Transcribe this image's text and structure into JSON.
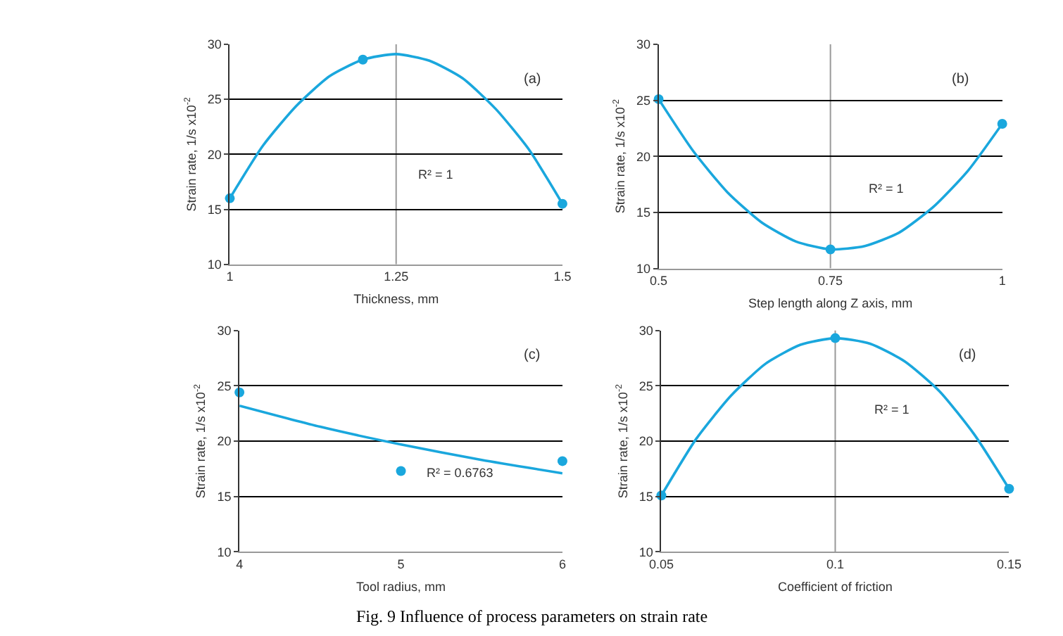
{
  "chart_data": [
    {
      "type": "scatter",
      "xlabel": "Thickness, mm",
      "ylabel": "Strain rate, 1/s x10$^{-2}$",
      "annotations": [
        "(a)",
        "R² = 1"
      ],
      "xlim": [
        1,
        1.5
      ],
      "xticks": [
        1,
        1.25,
        1.5
      ],
      "ylim": [
        10,
        30
      ],
      "yticks": [
        10,
        15,
        20,
        25,
        30
      ],
      "grid": "y",
      "ref_lines": [
        {
          "axis": "x",
          "value": 1.25,
          "color": "#999999"
        }
      ],
      "series": [
        {
          "marker": "circle",
          "color": "#1aa7dd",
          "x": [
            1,
            1.2,
            1.5
          ],
          "values": [
            16,
            28.6,
            15.5
          ]
        },
        {
          "type": "line",
          "marker": "none",
          "color": "#1aa7dd",
          "x": [
            1,
            1.05,
            1.1,
            1.15,
            1.2,
            1.25,
            1.3,
            1.35,
            1.4,
            1.45,
            1.5
          ],
          "values": [
            16,
            20.8,
            24.4,
            27.1,
            28.6,
            29.1,
            28.5,
            26.9,
            24.1,
            20.4,
            15.5
          ]
        }
      ]
    },
    {
      "type": "scatter",
      "xlabel": "Step length along Z axis, mm",
      "ylabel": "Strain rate, 1/s x10$^{-2}$",
      "annotations": [
        "(b)",
        "R² = 1"
      ],
      "xlim": [
        0.5,
        1
      ],
      "xticks": [
        0.5,
        0.75,
        1
      ],
      "ylim": [
        10,
        30
      ],
      "yticks": [
        10,
        15,
        20,
        25,
        30
      ],
      "grid": "y",
      "ref_lines": [
        {
          "axis": "x",
          "value": 0.75,
          "color": "#999999"
        }
      ],
      "series": [
        {
          "marker": "circle",
          "color": "#1aa7dd",
          "x": [
            0.5,
            0.75,
            1
          ],
          "values": [
            25.1,
            11.7,
            22.9
          ]
        },
        {
          "type": "line",
          "marker": "none",
          "color": "#1aa7dd",
          "x": [
            0.5,
            0.55,
            0.6,
            0.65,
            0.7,
            0.75,
            0.8,
            0.85,
            0.9,
            0.95,
            1
          ],
          "values": [
            25.1,
            20.5,
            16.8,
            14.1,
            12.4,
            11.7,
            12.0,
            13.2,
            15.5,
            18.7,
            22.9
          ]
        }
      ]
    },
    {
      "type": "scatter",
      "xlabel": "Tool radius, mm",
      "ylabel": "Strain rate, 1/s x10$^{-2}$",
      "annotations": [
        "(c)",
        "R² = 0.6763"
      ],
      "xlim": [
        4,
        6
      ],
      "xticks": [
        4,
        5,
        6
      ],
      "ylim": [
        10,
        30
      ],
      "yticks": [
        10,
        15,
        20,
        25,
        30
      ],
      "grid": "y",
      "series": [
        {
          "marker": "circle",
          "color": "#1aa7dd",
          "x": [
            4,
            5,
            6
          ],
          "values": [
            24.4,
            17.3,
            18.2
          ]
        },
        {
          "type": "line",
          "marker": "none",
          "color": "#1aa7dd",
          "x": [
            4,
            4.5,
            5,
            5.5,
            6
          ],
          "values": [
            23.2,
            21.3,
            19.7,
            18.3,
            17.1
          ]
        }
      ]
    },
    {
      "type": "scatter",
      "xlabel": "Coefficient of friction",
      "ylabel": "Strain rate, 1/s x10$^{-2}$",
      "annotations": [
        "(d)",
        "R² = 1",
        "Fig. 9 Influence of process parameters on strain rate"
      ],
      "xlim": [
        0.05,
        0.15
      ],
      "xticks": [
        0.05,
        0.1,
        0.15
      ],
      "ylim": [
        10,
        30
      ],
      "yticks": [
        10,
        15,
        20,
        25,
        30
      ],
      "grid": "y",
      "ref_lines": [
        {
          "axis": "x",
          "value": 0.1,
          "color": "#999999"
        }
      ],
      "series": [
        {
          "marker": "circle",
          "color": "#1aa7dd",
          "x": [
            0.05,
            0.1,
            0.15
          ],
          "values": [
            15.1,
            29.3,
            15.7
          ]
        },
        {
          "type": "line",
          "marker": "none",
          "color": "#1aa7dd",
          "x": [
            0.05,
            0.06,
            0.07,
            0.08,
            0.09,
            0.1,
            0.11,
            0.12,
            0.13,
            0.14,
            0.15
          ],
          "values": [
            15.1,
            20.2,
            24.1,
            27.0,
            28.7,
            29.3,
            28.8,
            27.2,
            24.5,
            20.6,
            15.7
          ]
        }
      ]
    }
  ]
}
